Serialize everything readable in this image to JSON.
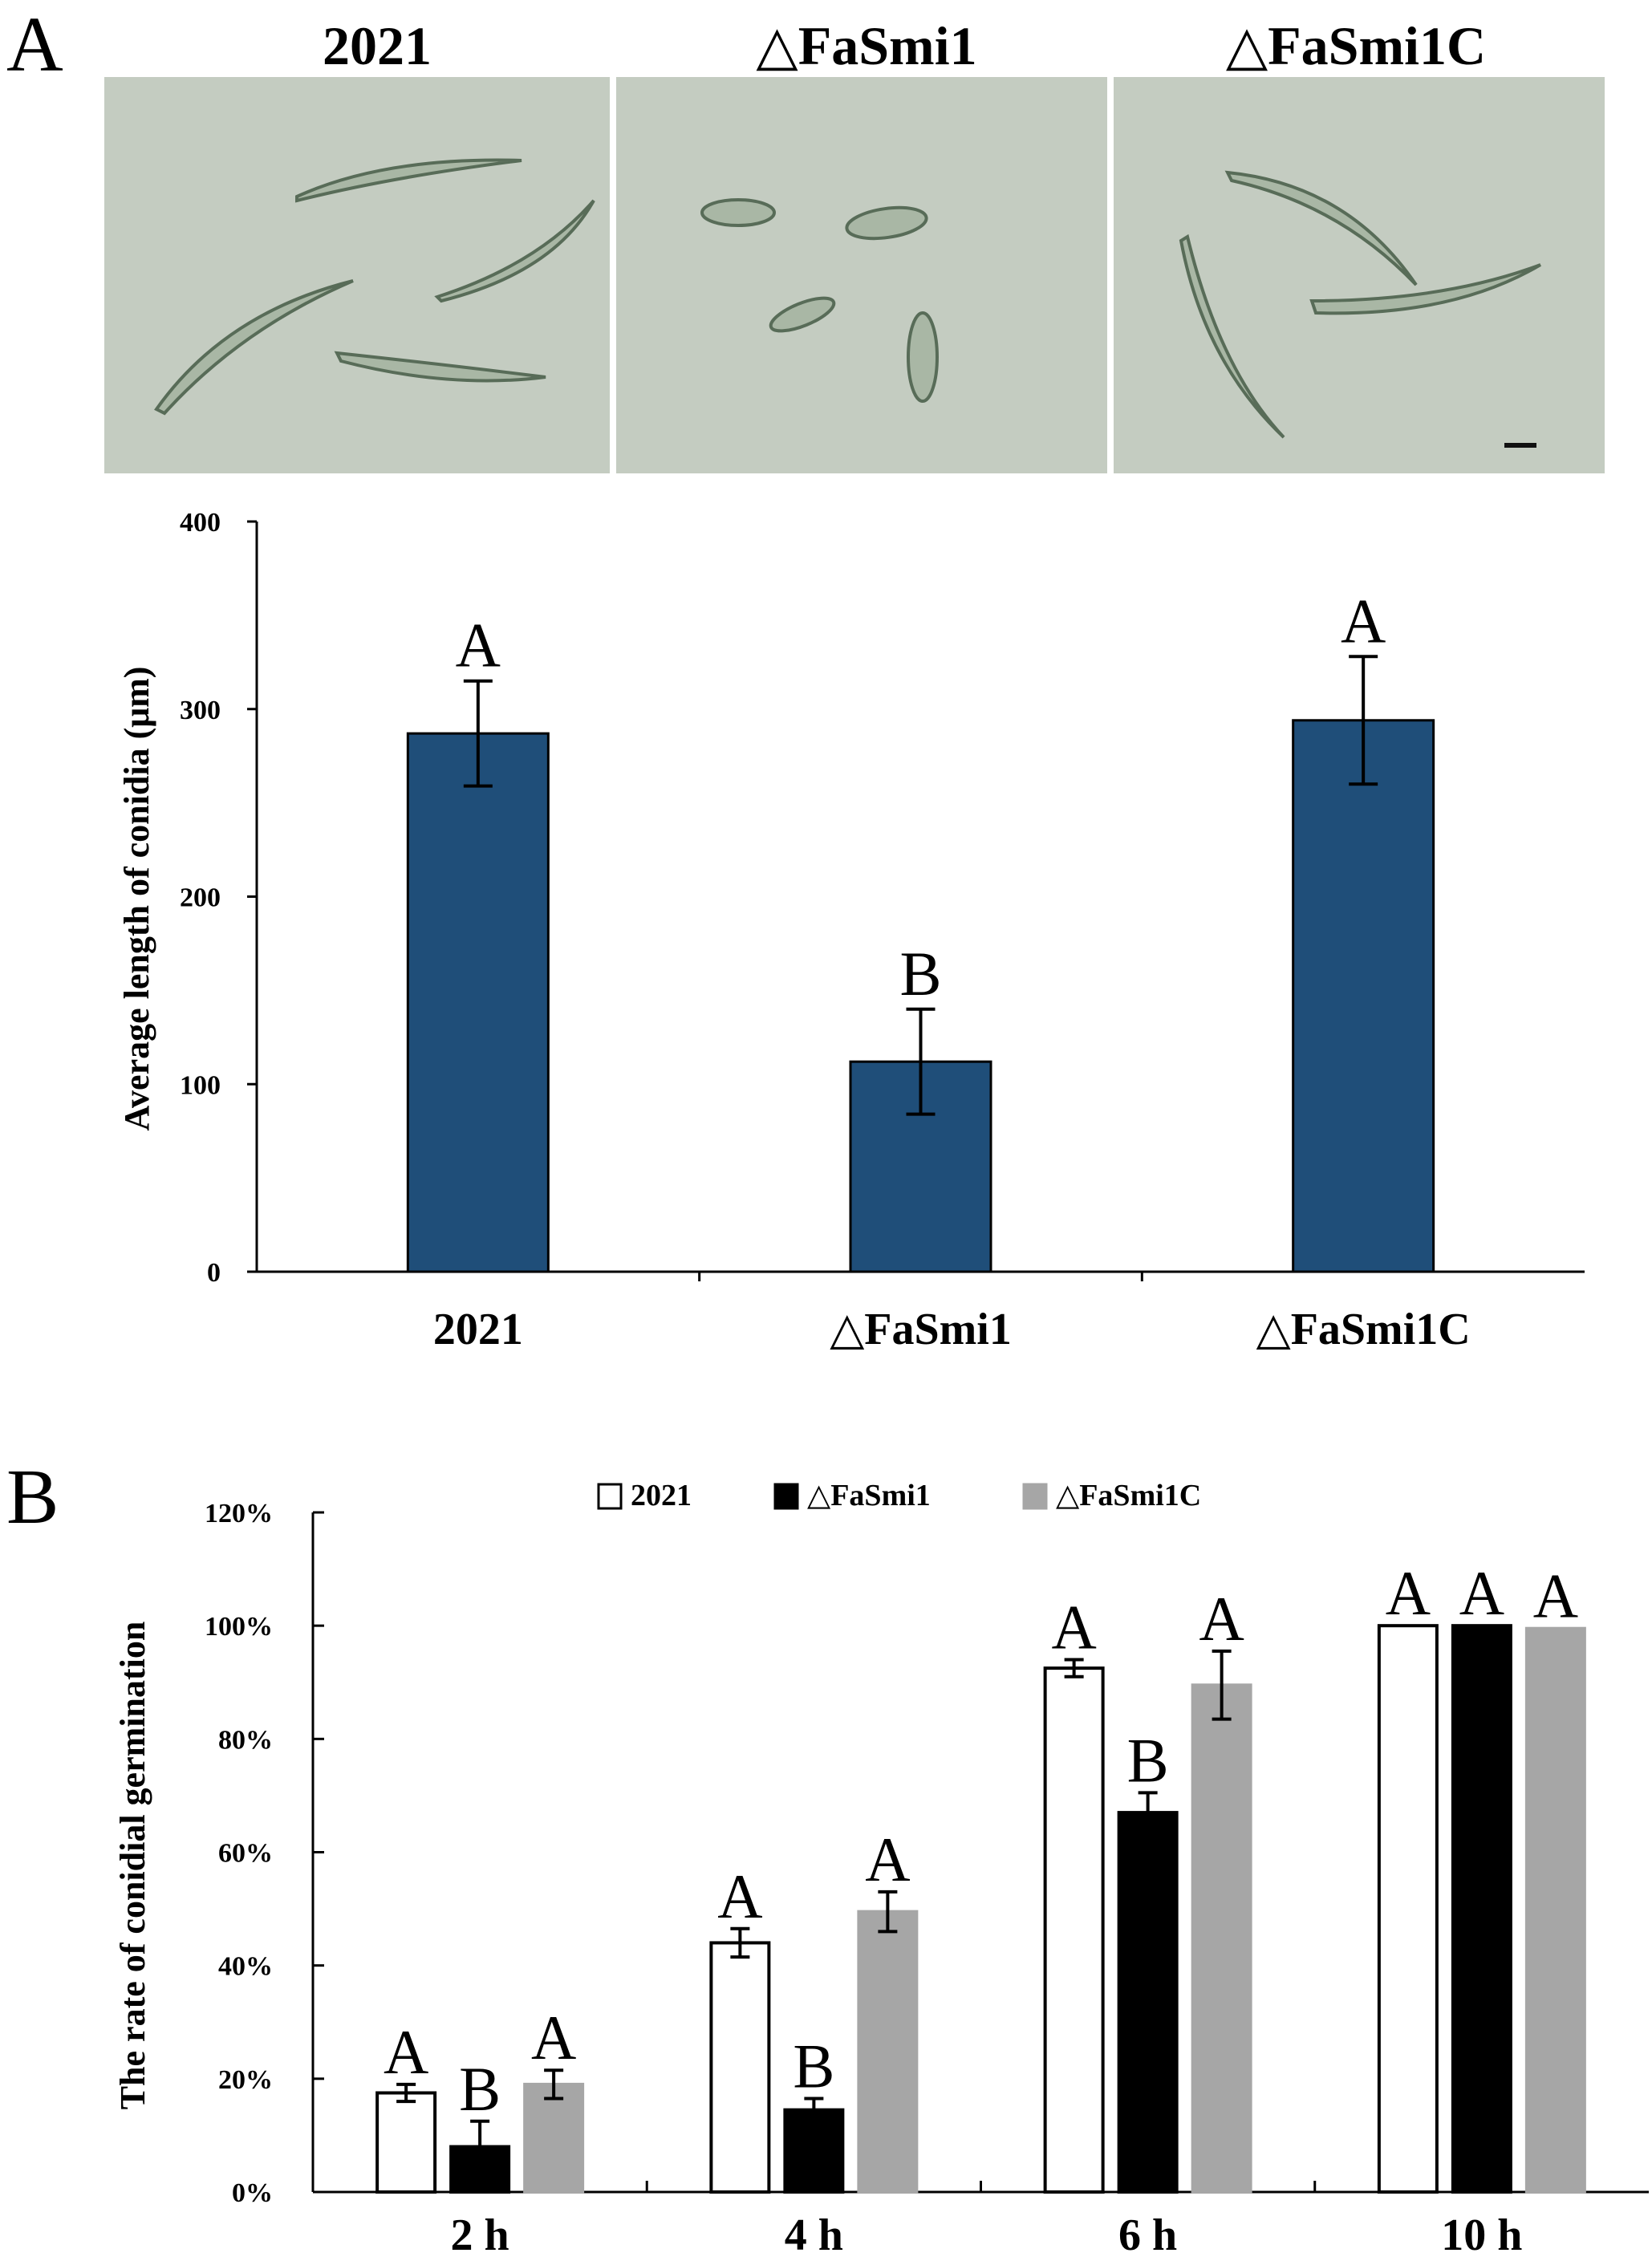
{
  "panels": {
    "a_label": "A",
    "b_label": "B"
  },
  "micrographs": {
    "titles": [
      "2021",
      "△FaSmi1",
      "△FaSmi1C"
    ]
  },
  "colors": {
    "bar_a": "#1f4e79",
    "micro_bg": "#c4ccc1",
    "conidia_edge": "#586c58",
    "b_series": [
      "#ffffff",
      "#000000",
      "#a6a6a6"
    ]
  },
  "chart_data": [
    {
      "type": "bar",
      "title": "",
      "categories": [
        "2021",
        "△FaSmi1",
        "△FaSmi1C"
      ],
      "values": [
        287,
        112,
        294
      ],
      "errors": [
        28,
        28,
        34
      ],
      "significance": [
        "A",
        "B",
        "A"
      ],
      "ylabel": "Average length of conidia (μm)",
      "xlabel": "",
      "ylim": [
        0,
        400
      ],
      "yticks": [
        "0",
        "100",
        "200",
        "300",
        "400"
      ]
    },
    {
      "type": "bar",
      "title": "",
      "categories": [
        "2 h",
        "4 h",
        "6 h",
        "10 h"
      ],
      "series": [
        {
          "name": "2021",
          "values": [
            17.5,
            44,
            92.5,
            100
          ],
          "errors": [
            1.5,
            2.5,
            1.5,
            0
          ],
          "significance": [
            "A",
            "A",
            "A",
            "A"
          ]
        },
        {
          "name": "△FaSmi1",
          "values": [
            8,
            14.5,
            67,
            100
          ],
          "errors": [
            4.5,
            2,
            3.5,
            0
          ],
          "significance": [
            "B",
            "B",
            "B",
            "A"
          ]
        },
        {
          "name": "△FaSmi1C",
          "values": [
            19,
            49.5,
            89.5,
            99.5
          ],
          "errors": [
            2.5,
            3.5,
            6,
            0
          ],
          "significance": [
            "A",
            "A",
            "A",
            "A"
          ]
        }
      ],
      "ylabel": "The rate of conidial germination",
      "xlabel": "",
      "ylim": [
        0,
        120
      ],
      "yticks": [
        "0%",
        "20%",
        "40%",
        "60%",
        "80%",
        "100%",
        "120%"
      ],
      "legend_position": "top"
    }
  ]
}
